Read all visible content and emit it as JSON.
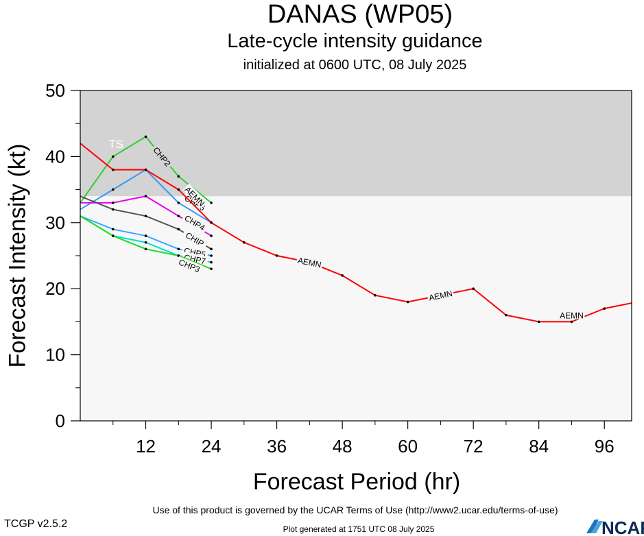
{
  "header": {
    "title": "DANAS (WP05)",
    "subtitle": "Late-cycle intensity guidance",
    "init": "initialized at 0600 UTC, 08 July 2025"
  },
  "footer": {
    "terms": "Use of this product is governed by the UCAR Terms of Use (http://www2.ucar.edu/terms-of-use)",
    "version": "TCGP v2.5.2",
    "generated": "Plot generated at 1751 UTC   08 July 2025",
    "logo_text": "NCAR"
  },
  "chart_data": {
    "type": "line",
    "title": "DANAS (WP05)",
    "subtitle": "Late-cycle intensity guidance",
    "xlabel": "Forecast Period (hr)",
    "ylabel": "Forecast Intensity (kt)",
    "xlim": [
      0,
      101
    ],
    "ylim": [
      0,
      50
    ],
    "xticks": [
      12,
      24,
      36,
      48,
      60,
      72,
      84,
      96
    ],
    "yticks": [
      0,
      10,
      20,
      30,
      40,
      50
    ],
    "grid": false,
    "bands": [
      {
        "label": "",
        "from": 0,
        "to": 34,
        "color": "#f7f7f7"
      },
      {
        "label": "TS",
        "from": 34,
        "to": 50,
        "color": "#d3d3d3"
      }
    ],
    "series": [
      {
        "name": "AEMN",
        "color": "#ff0000",
        "x": [
          0,
          6,
          12,
          18,
          24,
          30,
          36,
          42,
          48,
          54,
          60,
          66,
          72,
          78,
          84,
          90,
          96,
          102
        ],
        "y": [
          42,
          38,
          38,
          35,
          30,
          27,
          25,
          24,
          22,
          19,
          18,
          19,
          20,
          16,
          15,
          15,
          17,
          18
        ],
        "labels": [
          {
            "x": 21,
            "y": 34
          },
          {
            "x": 42,
            "y": 24
          },
          {
            "x": 66,
            "y": 19
          },
          {
            "x": 90,
            "y": 16
          }
        ]
      },
      {
        "name": "CHP2",
        "color": "#33cc33",
        "x": [
          0,
          6,
          12,
          18,
          24
        ],
        "y": [
          33,
          40,
          43,
          37,
          33
        ],
        "labels": [
          {
            "x": 15,
            "y": 40
          }
        ]
      },
      {
        "name": "CHP6",
        "color": "#3399ff",
        "x": [
          0,
          6,
          12,
          18,
          24
        ],
        "y": [
          32,
          35,
          38,
          33,
          30
        ],
        "labels": [
          {
            "x": 21,
            "y": 33
          }
        ]
      },
      {
        "name": "CHP4",
        "color": "#ee00ee",
        "x": [
          0,
          6,
          12,
          18,
          24
        ],
        "y": [
          33,
          33,
          34,
          31,
          28
        ],
        "labels": [
          {
            "x": 21,
            "y": 30
          }
        ]
      },
      {
        "name": "CHIP",
        "color": "#555555",
        "x": [
          0,
          6,
          12,
          18,
          24
        ],
        "y": [
          34,
          32,
          31,
          29,
          26
        ],
        "labels": [
          {
            "x": 21,
            "y": 27.5
          }
        ]
      },
      {
        "name": "CHP5",
        "color": "#33aaff",
        "x": [
          0,
          6,
          12,
          18,
          24
        ],
        "y": [
          31,
          29,
          28,
          26,
          25
        ],
        "labels": [
          {
            "x": 21,
            "y": 25.5
          }
        ]
      },
      {
        "name": "CHP7",
        "color": "#00dddd",
        "x": [
          0,
          6,
          12,
          18,
          24
        ],
        "y": [
          31,
          28,
          27,
          25,
          24
        ],
        "labels": [
          {
            "x": 21,
            "y": 24.5
          }
        ]
      },
      {
        "name": "CHP3",
        "color": "#22dd22",
        "x": [
          0,
          6,
          12,
          18,
          24
        ],
        "y": [
          31,
          28,
          26,
          25,
          23
        ],
        "labels": [
          {
            "x": 20,
            "y": 23.5
          }
        ]
      }
    ]
  }
}
